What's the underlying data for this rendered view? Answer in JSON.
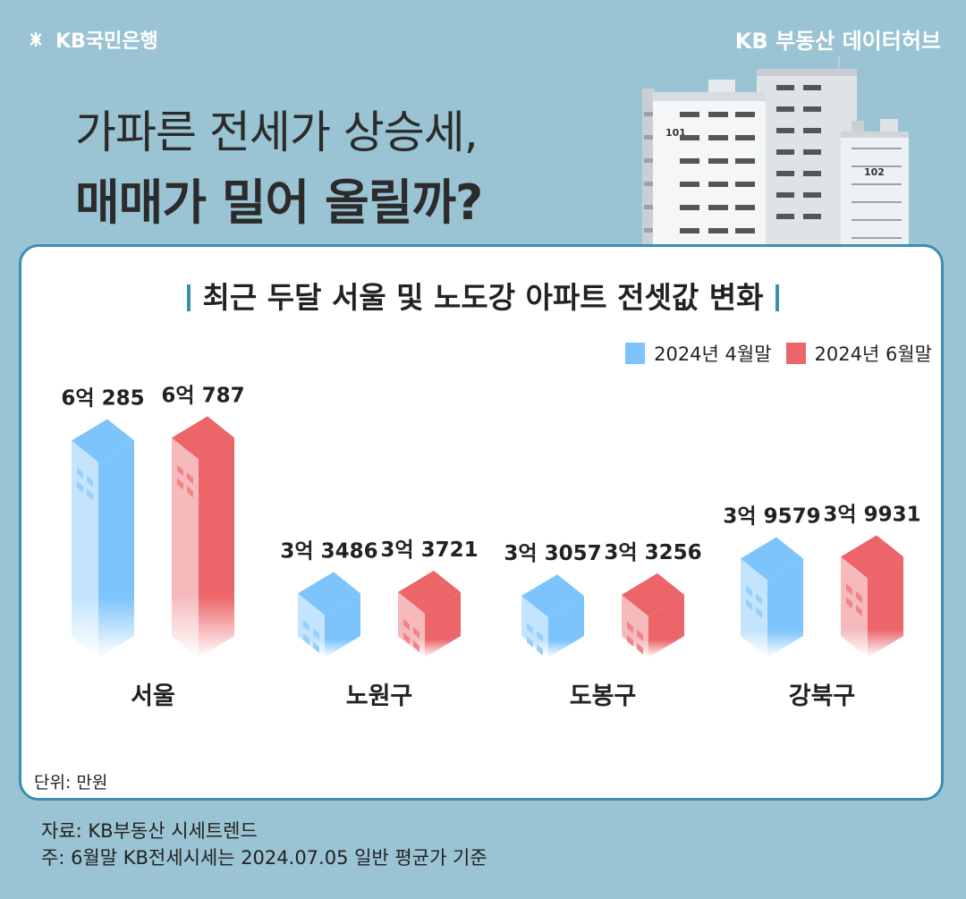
{
  "brand": {
    "logo_text": "KB국민은행",
    "hub_title": "KB 부동산  데이터허브"
  },
  "headline": {
    "line1": "가파른 전세가 상승세,",
    "line2": "매매가 밀어 올릴까?"
  },
  "buildings": {
    "label_101": "101",
    "label_102": "102"
  },
  "chart_data": {
    "type": "bar",
    "title": "최근 두달 서울 및 노도강 아파트 전셋값 변화",
    "categories": [
      "서울",
      "노원구",
      "도봉구",
      "강북구"
    ],
    "series": [
      {
        "name": "2024년 4월말",
        "color": "#7cc4fb",
        "values": [
          60285,
          33486,
          33057,
          39579
        ],
        "labels": [
          "6억 285",
          "3억 3486",
          "3억 3057",
          "3억 9579"
        ]
      },
      {
        "name": "2024년 6월말",
        "color": "#ec6569",
        "values": [
          60787,
          33721,
          33256,
          39931
        ],
        "labels": [
          "6억 787",
          "3억 3721",
          "3억 3256",
          "3억 9931"
        ]
      }
    ],
    "unit": "단위: 만원"
  },
  "footer": {
    "source": "자료: KB부동산 시세트렌드",
    "note": "주: 6월말 KB전세시세는 2024.07.05 일반 평균가 기준"
  },
  "colors": {
    "background": "#9ac3d3",
    "accent": "#3b8fb0",
    "april": "#7cc4fb",
    "june": "#ec6569"
  }
}
